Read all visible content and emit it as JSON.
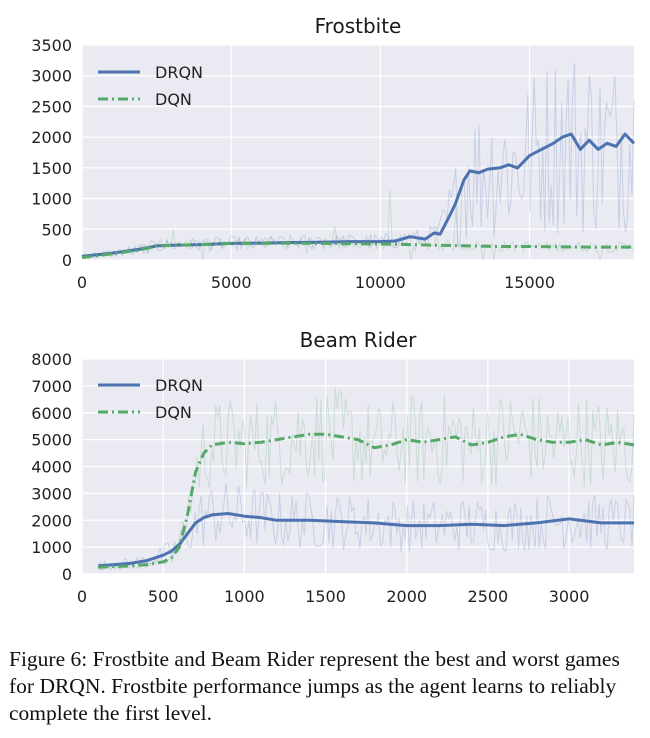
{
  "colors": {
    "drqn": "#4c72b0",
    "dqn": "#55a868",
    "plot_bg": "#eaeaf2",
    "grid": "#ffffff"
  },
  "chart_data": [
    {
      "type": "line",
      "title": "Frostbite",
      "xlabel": "",
      "ylabel": "",
      "xlim": [
        0,
        18500
      ],
      "ylim": [
        0,
        3500
      ],
      "xticks": [
        0,
        5000,
        10000,
        15000
      ],
      "yticks": [
        0,
        500,
        1000,
        1500,
        2000,
        2500,
        3000,
        3500
      ],
      "legend_position": "top-left",
      "grid": true,
      "series": [
        {
          "name": "DRQN",
          "style": "solid",
          "color": "#4c72b0",
          "x": [
            0,
            1000,
            2000,
            2500,
            3000,
            4000,
            5000,
            6000,
            7000,
            8000,
            9000,
            10000,
            10500,
            11000,
            11500,
            11800,
            12000,
            12300,
            12500,
            12800,
            13000,
            13300,
            13600,
            14000,
            14300,
            14600,
            15000,
            15400,
            15800,
            16100,
            16400,
            16700,
            17000,
            17300,
            17600,
            17900,
            18200,
            18500
          ],
          "y": [
            60,
            110,
            180,
            230,
            240,
            250,
            270,
            275,
            285,
            290,
            300,
            300,
            310,
            380,
            340,
            440,
            420,
            700,
            900,
            1300,
            1450,
            1420,
            1480,
            1500,
            1550,
            1500,
            1700,
            1800,
            1900,
            2000,
            2050,
            1800,
            1950,
            1800,
            1900,
            1850,
            2050,
            1900
          ]
        },
        {
          "name": "DQN",
          "style": "dashdot",
          "color": "#55a868",
          "x": [
            0,
            1000,
            2000,
            2500,
            3000,
            4000,
            5000,
            6000,
            7000,
            8000,
            9000,
            10000,
            11000,
            12000,
            13000,
            14000,
            15000,
            16000,
            17000,
            18000,
            18500
          ],
          "y": [
            40,
            100,
            170,
            230,
            240,
            250,
            270,
            270,
            275,
            270,
            265,
            260,
            250,
            240,
            230,
            220,
            220,
            215,
            210,
            210,
            210
          ]
        }
      ]
    },
    {
      "type": "line",
      "title": "Beam Rider",
      "xlabel": "",
      "ylabel": "",
      "xlim": [
        0,
        3400
      ],
      "ylim": [
        0,
        8000
      ],
      "xticks": [
        0,
        500,
        1000,
        1500,
        2000,
        2500,
        3000
      ],
      "yticks": [
        0,
        1000,
        2000,
        3000,
        4000,
        5000,
        6000,
        7000,
        8000
      ],
      "legend_position": "top-left",
      "grid": true,
      "series": [
        {
          "name": "DRQN",
          "style": "solid",
          "color": "#4c72b0",
          "x": [
            100,
            200,
            300,
            400,
            500,
            550,
            600,
            650,
            700,
            750,
            800,
            900,
            1000,
            1100,
            1200,
            1400,
            1600,
            1800,
            2000,
            2200,
            2400,
            2600,
            2800,
            3000,
            3200,
            3400
          ],
          "y": [
            300,
            350,
            400,
            500,
            700,
            850,
            1100,
            1500,
            1900,
            2100,
            2200,
            2250,
            2150,
            2100,
            2000,
            2000,
            1950,
            1900,
            1800,
            1800,
            1850,
            1800,
            1900,
            2050,
            1900,
            1900
          ]
        },
        {
          "name": "DQN",
          "style": "dashdot",
          "color": "#55a868",
          "x": [
            100,
            200,
            300,
            400,
            500,
            550,
            600,
            650,
            700,
            750,
            800,
            900,
            1000,
            1100,
            1200,
            1300,
            1400,
            1500,
            1600,
            1700,
            1800,
            1900,
            2000,
            2100,
            2200,
            2300,
            2400,
            2500,
            2600,
            2700,
            2800,
            2900,
            3000,
            3100,
            3200,
            3300,
            3400
          ],
          "y": [
            250,
            280,
            300,
            350,
            450,
            600,
            1000,
            2200,
            3800,
            4500,
            4800,
            4900,
            4850,
            4900,
            5000,
            5100,
            5200,
            5200,
            5100,
            5000,
            4700,
            4800,
            5000,
            4900,
            5000,
            5100,
            4800,
            4900,
            5100,
            5200,
            5000,
            4900,
            4900,
            5000,
            4800,
            4900,
            4800
          ]
        }
      ]
    }
  ],
  "caption": "Figure 6: Frostbite and Beam Rider represent the best and worst games for DRQN. Frostbite performance jumps as the agent learns to reliably complete the first level."
}
